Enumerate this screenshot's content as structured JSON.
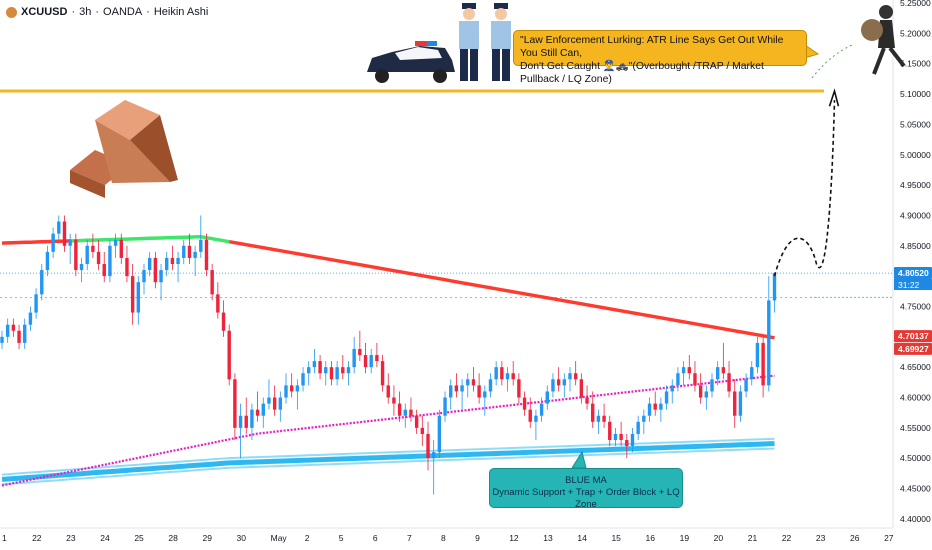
{
  "header": {
    "symbol": "XCUUSD",
    "timeframe": "3h",
    "broker": "OANDA",
    "chart_style": "Heikin Ashi"
  },
  "callout": {
    "text_line1": "\"Law Enforcement Lurking: ATR Line Says Get Out While You Still Can,",
    "text_line2": "Don't Get Caught 👮‍♂️🚓\"(Overbought /TRAP / Market Pullback / LQ Zone)"
  },
  "blue_box": {
    "line1": "BLUE MA",
    "line2": "Dynamic Support + Trap + Order Block + LQ Zone"
  },
  "colors": {
    "up": "#2196f3",
    "down": "#ef233c",
    "red_ma": "#ff3b30",
    "green_seg": "#3ee66a",
    "pink_ma": "#e81ec9",
    "blue_ma": "#2fb8f0",
    "trap_line": "#f5b51f",
    "price_tag_blue": "#1e88e5",
    "price_tag_red": "#e53935"
  },
  "chart_data": {
    "type": "candlestick",
    "symbol": "XCUUSD",
    "ylim": [
      4.385,
      5.255
    ],
    "y_ticks": [
      "5.25000",
      "5.20000",
      "5.15000",
      "5.10000",
      "5.05000",
      "5.00000",
      "4.95000",
      "4.90000",
      "4.85000",
      "4.80000",
      "4.75000",
      "4.70000",
      "4.65000",
      "4.60000",
      "4.55000",
      "4.50000",
      "4.45000",
      "4.40000"
    ],
    "y_tick_values": [
      5.25,
      5.2,
      5.15,
      5.1,
      5.05,
      5.0,
      4.95,
      4.9,
      4.85,
      4.8,
      4.75,
      4.7,
      4.65,
      4.6,
      4.55,
      4.5,
      4.45,
      4.4
    ],
    "x_labels": [
      "1",
      "22",
      "23",
      "24",
      "25",
      "28",
      "29",
      "30",
      "May",
      "2",
      "5",
      "6",
      "7",
      "8",
      "9",
      "12",
      "13",
      "14",
      "15",
      "16",
      "19",
      "20",
      "21",
      "22",
      "23",
      "26",
      "27"
    ],
    "x_label_index": [
      0,
      6,
      12,
      18,
      24,
      30,
      36,
      42,
      48,
      54,
      60,
      66,
      72,
      78,
      84,
      90,
      96,
      102,
      108,
      114,
      120,
      126,
      132,
      138,
      144,
      150,
      156
    ],
    "price_labels": {
      "current": "4.80520",
      "countdown": "31:22",
      "red_ma": "4.70137",
      "red_ma2": "4.69927"
    },
    "trap_level": 5.105,
    "candles": [
      [
        4.69,
        4.71,
        4.68,
        4.7
      ],
      [
        4.7,
        4.73,
        4.69,
        4.72
      ],
      [
        4.72,
        4.73,
        4.7,
        4.71
      ],
      [
        4.71,
        4.72,
        4.68,
        4.69
      ],
      [
        4.69,
        4.73,
        4.68,
        4.72
      ],
      [
        4.72,
        4.75,
        4.71,
        4.74
      ],
      [
        4.74,
        4.78,
        4.73,
        4.77
      ],
      [
        4.77,
        4.82,
        4.76,
        4.81
      ],
      [
        4.81,
        4.85,
        4.8,
        4.84
      ],
      [
        4.84,
        4.88,
        4.83,
        4.87
      ],
      [
        4.87,
        4.9,
        4.86,
        4.89
      ],
      [
        4.89,
        4.9,
        4.84,
        4.85
      ],
      [
        4.85,
        4.87,
        4.82,
        4.86
      ],
      [
        4.86,
        4.87,
        4.8,
        4.81
      ],
      [
        4.81,
        4.83,
        4.79,
        4.82
      ],
      [
        4.82,
        4.86,
        4.81,
        4.85
      ],
      [
        4.85,
        4.87,
        4.83,
        4.84
      ],
      [
        4.84,
        4.86,
        4.81,
        4.82
      ],
      [
        4.82,
        4.84,
        4.79,
        4.8
      ],
      [
        4.8,
        4.86,
        4.79,
        4.85
      ],
      [
        4.85,
        4.87,
        4.83,
        4.86
      ],
      [
        4.86,
        4.87,
        4.82,
        4.83
      ],
      [
        4.83,
        4.85,
        4.79,
        4.8
      ],
      [
        4.8,
        4.82,
        4.72,
        4.74
      ],
      [
        4.74,
        4.8,
        4.72,
        4.79
      ],
      [
        4.79,
        4.82,
        4.77,
        4.81
      ],
      [
        4.81,
        4.84,
        4.8,
        4.83
      ],
      [
        4.83,
        4.84,
        4.78,
        4.79
      ],
      [
        4.79,
        4.82,
        4.76,
        4.81
      ],
      [
        4.81,
        4.84,
        4.8,
        4.83
      ],
      [
        4.83,
        4.85,
        4.81,
        4.82
      ],
      [
        4.82,
        4.84,
        4.79,
        4.83
      ],
      [
        4.83,
        4.86,
        4.82,
        4.85
      ],
      [
        4.85,
        4.87,
        4.82,
        4.83
      ],
      [
        4.83,
        4.85,
        4.8,
        4.84
      ],
      [
        4.84,
        4.9,
        4.83,
        4.86
      ],
      [
        4.86,
        4.87,
        4.8,
        4.81
      ],
      [
        4.81,
        4.82,
        4.76,
        4.77
      ],
      [
        4.77,
        4.79,
        4.73,
        4.74
      ],
      [
        4.74,
        4.76,
        4.7,
        4.71
      ],
      [
        4.71,
        4.72,
        4.62,
        4.63
      ],
      [
        4.63,
        4.64,
        4.53,
        4.55
      ],
      [
        4.55,
        4.59,
        4.5,
        4.57
      ],
      [
        4.57,
        4.6,
        4.54,
        4.55
      ],
      [
        4.55,
        4.59,
        4.53,
        4.58
      ],
      [
        4.58,
        4.61,
        4.56,
        4.57
      ],
      [
        4.57,
        4.6,
        4.55,
        4.59
      ],
      [
        4.59,
        4.63,
        4.58,
        4.6
      ],
      [
        4.6,
        4.62,
        4.57,
        4.58
      ],
      [
        4.58,
        4.61,
        4.56,
        4.6
      ],
      [
        4.6,
        4.64,
        4.59,
        4.62
      ],
      [
        4.62,
        4.64,
        4.6,
        4.61
      ],
      [
        4.61,
        4.63,
        4.58,
        4.62
      ],
      [
        4.62,
        4.65,
        4.61,
        4.64
      ],
      [
        4.64,
        4.66,
        4.62,
        4.65
      ],
      [
        4.65,
        4.68,
        4.64,
        4.66
      ],
      [
        4.66,
        4.67,
        4.63,
        4.64
      ],
      [
        4.64,
        4.66,
        4.62,
        4.65
      ],
      [
        4.65,
        4.66,
        4.62,
        4.63
      ],
      [
        4.63,
        4.66,
        4.62,
        4.65
      ],
      [
        4.65,
        4.67,
        4.63,
        4.64
      ],
      [
        4.64,
        4.66,
        4.62,
        4.65
      ],
      [
        4.65,
        4.7,
        4.64,
        4.68
      ],
      [
        4.68,
        4.71,
        4.66,
        4.67
      ],
      [
        4.67,
        4.69,
        4.64,
        4.65
      ],
      [
        4.65,
        4.68,
        4.64,
        4.67
      ],
      [
        4.67,
        4.69,
        4.65,
        4.66
      ],
      [
        4.66,
        4.67,
        4.61,
        4.62
      ],
      [
        4.62,
        4.64,
        4.59,
        4.6
      ],
      [
        4.6,
        4.62,
        4.57,
        4.59
      ],
      [
        4.59,
        4.61,
        4.56,
        4.57
      ],
      [
        4.57,
        4.59,
        4.55,
        4.58
      ],
      [
        4.58,
        4.6,
        4.56,
        4.57
      ],
      [
        4.57,
        4.58,
        4.54,
        4.55
      ],
      [
        4.55,
        4.57,
        4.52,
        4.54
      ],
      [
        4.54,
        4.56,
        4.48,
        4.5
      ],
      [
        4.5,
        4.53,
        4.44,
        4.51
      ],
      [
        4.51,
        4.58,
        4.5,
        4.57
      ],
      [
        4.57,
        4.61,
        4.56,
        4.6
      ],
      [
        4.6,
        4.63,
        4.58,
        4.62
      ],
      [
        4.62,
        4.64,
        4.6,
        4.61
      ],
      [
        4.61,
        4.63,
        4.58,
        4.62
      ],
      [
        4.62,
        4.64,
        4.6,
        4.63
      ],
      [
        4.63,
        4.65,
        4.61,
        4.62
      ],
      [
        4.62,
        4.64,
        4.59,
        4.6
      ],
      [
        4.6,
        4.62,
        4.57,
        4.61
      ],
      [
        4.61,
        4.64,
        4.6,
        4.63
      ],
      [
        4.63,
        4.66,
        4.62,
        4.65
      ],
      [
        4.65,
        4.66,
        4.62,
        4.63
      ],
      [
        4.63,
        4.65,
        4.61,
        4.64
      ],
      [
        4.64,
        4.66,
        4.62,
        4.63
      ],
      [
        4.63,
        4.64,
        4.59,
        4.6
      ],
      [
        4.6,
        4.61,
        4.57,
        4.58
      ],
      [
        4.58,
        4.6,
        4.55,
        4.56
      ],
      [
        4.56,
        4.58,
        4.53,
        4.57
      ],
      [
        4.57,
        4.6,
        4.56,
        4.59
      ],
      [
        4.59,
        4.62,
        4.58,
        4.61
      ],
      [
        4.61,
        4.64,
        4.6,
        4.63
      ],
      [
        4.63,
        4.65,
        4.61,
        4.62
      ],
      [
        4.62,
        4.64,
        4.6,
        4.63
      ],
      [
        4.63,
        4.65,
        4.61,
        4.64
      ],
      [
        4.64,
        4.66,
        4.62,
        4.63
      ],
      [
        4.63,
        4.64,
        4.59,
        4.6
      ],
      [
        4.6,
        4.62,
        4.58,
        4.59
      ],
      [
        4.59,
        4.61,
        4.55,
        4.56
      ],
      [
        4.56,
        4.58,
        4.54,
        4.57
      ],
      [
        4.57,
        4.59,
        4.55,
        4.56
      ],
      [
        4.56,
        4.57,
        4.52,
        4.53
      ],
      [
        4.53,
        4.55,
        4.52,
        4.54
      ],
      [
        4.54,
        4.56,
        4.52,
        4.53
      ],
      [
        4.53,
        4.54,
        4.5,
        4.52
      ],
      [
        4.52,
        4.55,
        4.51,
        4.54
      ],
      [
        4.54,
        4.57,
        4.53,
        4.56
      ],
      [
        4.56,
        4.58,
        4.54,
        4.57
      ],
      [
        4.57,
        4.6,
        4.56,
        4.59
      ],
      [
        4.59,
        4.61,
        4.57,
        4.58
      ],
      [
        4.58,
        4.6,
        4.56,
        4.59
      ],
      [
        4.59,
        4.62,
        4.58,
        4.61
      ],
      [
        4.61,
        4.63,
        4.59,
        4.62
      ],
      [
        4.62,
        4.65,
        4.61,
        4.64
      ],
      [
        4.64,
        4.66,
        4.62,
        4.65
      ],
      [
        4.65,
        4.67,
        4.63,
        4.64
      ],
      [
        4.64,
        4.66,
        4.61,
        4.62
      ],
      [
        4.62,
        4.64,
        4.59,
        4.6
      ],
      [
        4.6,
        4.62,
        4.58,
        4.61
      ],
      [
        4.61,
        4.64,
        4.6,
        4.63
      ],
      [
        4.63,
        4.66,
        4.62,
        4.65
      ],
      [
        4.65,
        4.69,
        4.63,
        4.64
      ],
      [
        4.64,
        4.66,
        4.6,
        4.61
      ],
      [
        4.61,
        4.63,
        4.55,
        4.57
      ],
      [
        4.57,
        4.62,
        4.56,
        4.61
      ],
      [
        4.61,
        4.64,
        4.6,
        4.63
      ],
      [
        4.63,
        4.66,
        4.62,
        4.65
      ],
      [
        4.65,
        4.7,
        4.64,
        4.69
      ],
      [
        4.69,
        4.7,
        4.6,
        4.62
      ],
      [
        4.62,
        4.8,
        4.61,
        4.76
      ],
      [
        4.76,
        4.806,
        4.74,
        4.805
      ]
    ]
  }
}
